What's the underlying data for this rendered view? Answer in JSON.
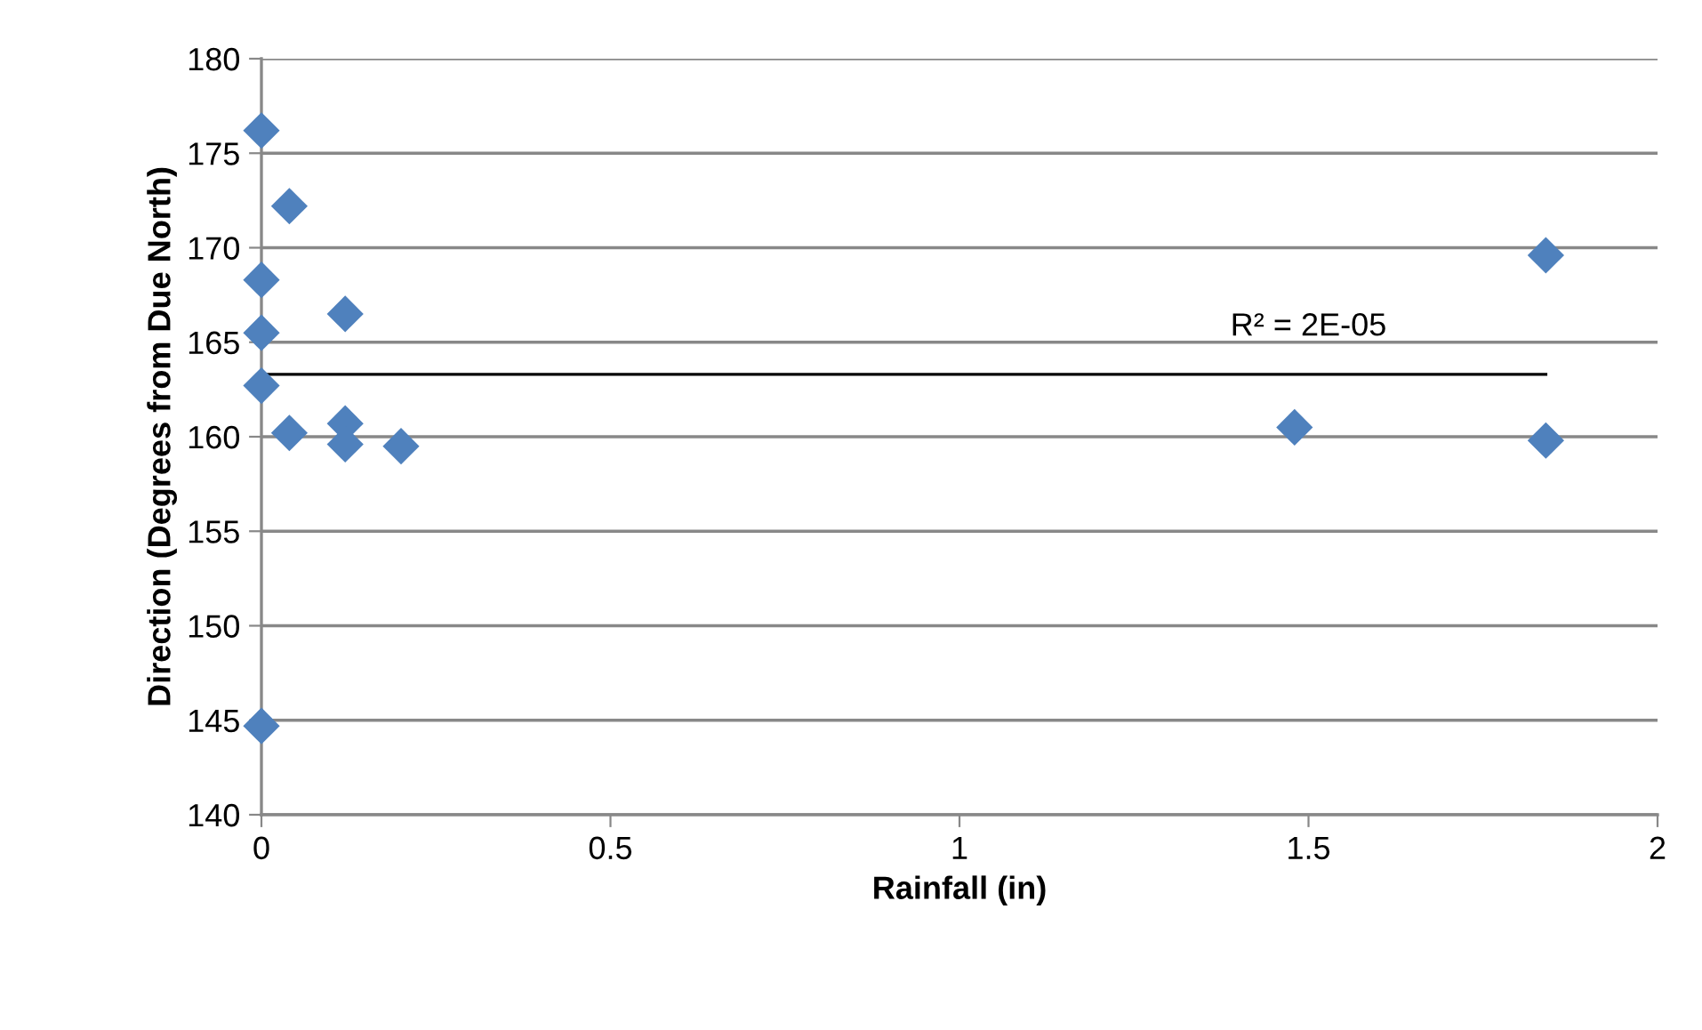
{
  "chart_data": {
    "type": "scatter",
    "xlabel": "Rainfall (in)",
    "ylabel": "Direction (Degrees from Due North)",
    "series": [
      {
        "color": "#4f81bd",
        "marker": "diamond",
        "x": [
          0,
          0.04,
          0,
          0,
          0,
          0.04,
          0.12,
          0.12,
          0.12,
          0.2,
          0,
          1.48,
          1.84,
          1.84
        ],
        "values": [
          176.2,
          172.2,
          168.3,
          165.5,
          162.7,
          160.2,
          166.5,
          160.7,
          159.6,
          159.5,
          144.7,
          160.5,
          159.8,
          169.6
        ]
      },
      {
        "type": "line",
        "color": "#000000",
        "marker": "none",
        "line_style": "solid",
        "x": [
          0,
          1.84
        ],
        "values": [
          163.3,
          163.3
        ]
      }
    ],
    "annotations": [
      "R² = 2E-05"
    ],
    "xlim": [
      0,
      2
    ],
    "ylim": [
      140,
      180
    ],
    "xticks": [
      0,
      0.5,
      1,
      1.5,
      2
    ],
    "yticks": [
      140,
      145,
      150,
      155,
      160,
      165,
      170,
      175,
      180
    ],
    "grid": "y",
    "legend": false
  }
}
